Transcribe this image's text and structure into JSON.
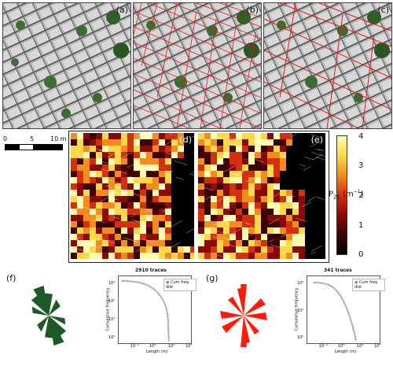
{
  "panels": {
    "a": "(a)",
    "b": "(b)",
    "c": "(c)",
    "d": "(d)",
    "e": "(e)",
    "f": "(f)",
    "g": "(g)"
  },
  "scalebar": {
    "ticks": [
      "0",
      "5",
      "10 m"
    ]
  },
  "colorbar": {
    "label_main": "P",
    "label_sub": "21",
    "label_unit": " (m",
    "label_sup": "−1",
    "label_close": ")",
    "ticks": [
      "4",
      "3",
      "2",
      "1",
      "0"
    ],
    "colors": [
      "#fffbb0",
      "#fbd84a",
      "#f38b1d",
      "#d2300f",
      "#8a0a07",
      "#3b0202",
      "#000000"
    ]
  },
  "plot_f": {
    "title": "2910 traces",
    "legend": "Cum freq dist",
    "xlabel": "Length (m)",
    "ylabel": "Cumulative frequency",
    "yticks": [
      "10³",
      "10²",
      "10¹",
      "10⁰"
    ],
    "xticks": [
      "10⁻¹",
      "10⁰",
      "10¹",
      "10²"
    ]
  },
  "plot_g": {
    "title": "341 traces",
    "legend": "Cum freq dist",
    "xlabel": "Length (m)",
    "ylabel": "Cumulative frequency",
    "yticks": [
      "10²",
      "10¹",
      "10⁰"
    ],
    "xticks": [
      "10⁻¹",
      "10⁰",
      "10¹",
      "10²"
    ]
  },
  "colors": {
    "rose_f": "#1e5a28",
    "rose_g": "#ff1a0a",
    "curve": "#8a8a8a"
  }
}
